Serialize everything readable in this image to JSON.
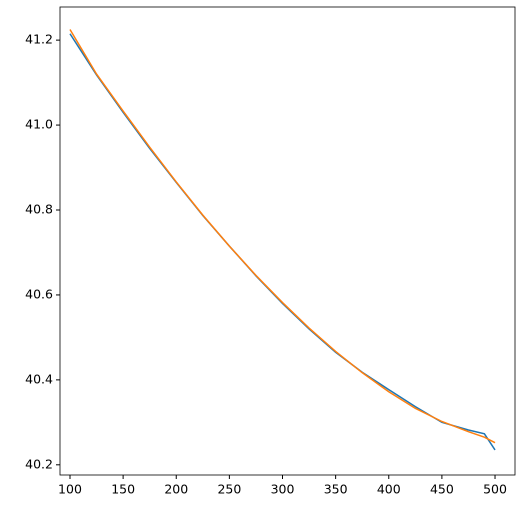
{
  "chart_data": {
    "type": "line",
    "x": [
      100,
      125,
      150,
      175,
      200,
      225,
      250,
      275,
      300,
      325,
      350,
      375,
      400,
      425,
      450,
      475,
      490,
      500
    ],
    "series": [
      {
        "color": "#1f77b4",
        "values": [
          41.215,
          41.118,
          41.03,
          40.945,
          40.865,
          40.787,
          40.715,
          40.645,
          40.58,
          40.52,
          40.465,
          40.418,
          40.377,
          40.337,
          40.3,
          40.282,
          40.273,
          40.235
        ]
      },
      {
        "color": "#ff7f0e",
        "values": [
          41.225,
          41.12,
          41.033,
          40.948,
          40.866,
          40.788,
          40.715,
          40.646,
          40.582,
          40.522,
          40.467,
          40.417,
          40.372,
          40.333,
          40.302,
          40.278,
          40.265,
          40.252
        ]
      }
    ],
    "xlim": [
      90.6,
      518.8
    ],
    "ylim": [
      40.176,
      41.278
    ],
    "xticks": [
      100,
      150,
      200,
      250,
      300,
      350,
      400,
      450,
      500
    ],
    "yticks": [
      {
        "value": 40.2,
        "label": "40.2"
      },
      {
        "value": 40.4,
        "label": "40.4"
      },
      {
        "value": 40.6,
        "label": "40.6"
      },
      {
        "value": 40.8,
        "label": "40.8"
      },
      {
        "value": 41.0,
        "label": "41.0"
      },
      {
        "value": 41.2,
        "label": "41.2"
      }
    ]
  }
}
